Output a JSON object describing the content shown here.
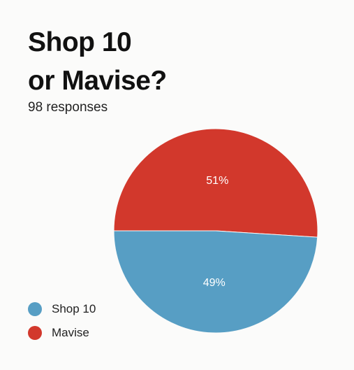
{
  "chart_data": {
    "type": "pie",
    "title_lines": [
      "Shop 10",
      "or Mavise?"
    ],
    "subtitle": "98 responses",
    "slices": [
      {
        "label": "Shop 10",
        "value": 49,
        "display": "49%",
        "color": "#579ec4"
      },
      {
        "label": "Mavise",
        "value": 51,
        "display": "51%",
        "color": "#d2382c"
      }
    ],
    "legend_position": "bottom-left"
  }
}
